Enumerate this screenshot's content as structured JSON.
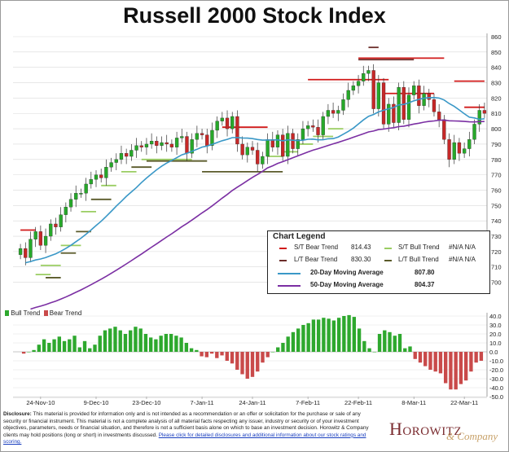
{
  "title": "Russell 2000 Stock Index",
  "legend": {
    "title": "Chart Legend",
    "items": [
      {
        "label": "S/T Bear Trend",
        "value": "814.43",
        "color": "#d11a1a"
      },
      {
        "label": "S/T Bull Trend",
        "value": "#N/A N/A",
        "color": "#9acd62"
      },
      {
        "label": "L/T Bear Trend",
        "value": "830.30",
        "color": "#6b2d2a"
      },
      {
        "label": "L/T Bull Trend",
        "value": "#N/A N/A",
        "color": "#5a5a2a"
      },
      {
        "label": "20-Day Moving Average",
        "value": "807.80",
        "color": "#3a98c7"
      },
      {
        "label": "50-Day Moving Average",
        "value": "804.37",
        "color": "#7b2fa3"
      }
    ]
  },
  "disclosure": {
    "label": "Disclosure:",
    "text": "This material is provided for information only and is not intended as a recommendation or an offer or solicitation for the purchase or sale of any security or financial instrument. This material is not a complete analysis of all material facts respecting any issuer, industry or security or of your investment objectives, parameters, needs or financial situation, and therefore is not a sufficient basis alone on which to base an investment decision. Horowitz & Company clients may hold positions (long or short) in investments discussed.",
    "link": "Please click for detailed disclosures and additional information about our stock ratings and scoring."
  },
  "logo": {
    "main": "Horowitz",
    "sub": "& Company"
  },
  "chart_data": [
    {
      "type": "candlestick",
      "title": "Russell 2000 Stock Index",
      "ylim": [
        695,
        860
      ],
      "yticks": [
        700,
        710,
        720,
        730,
        740,
        750,
        760,
        770,
        780,
        790,
        800,
        810,
        820,
        830,
        840,
        850,
        860
      ],
      "categories": [
        "24-Nov-10",
        "9-Dec-10",
        "23-Dec-10",
        "7-Jan-11",
        "24-Jan-11",
        "7-Feb-11",
        "22-Feb-11",
        "8-Mar-11",
        "22-Mar-11"
      ],
      "closes": [
        722,
        716,
        728,
        733,
        724,
        730,
        738,
        736,
        744,
        749,
        754,
        758,
        758,
        764,
        767,
        770,
        768,
        775,
        778,
        780,
        784,
        782,
        786,
        789,
        788,
        790,
        792,
        789,
        791,
        790,
        788,
        794,
        795,
        784,
        793,
        797,
        796,
        789,
        799,
        805,
        807,
        800,
        808,
        790,
        783,
        788,
        786,
        777,
        782,
        793,
        788,
        796,
        782,
        797,
        787,
        793,
        800,
        802,
        801,
        796,
        808,
        812,
        810,
        812,
        819,
        825,
        828,
        831,
        836,
        838,
        813,
        830,
        803,
        816,
        804,
        827,
        806,
        822,
        828,
        815,
        823,
        819,
        811,
        806,
        793,
        780,
        791,
        784,
        787,
        793,
        803,
        812,
        810
      ],
      "series": [
        {
          "name": "20-Day Moving Average",
          "color": "#3a98c7",
          "last": 807.8
        },
        {
          "name": "50-Day Moving Average",
          "color": "#7b2fa3",
          "last": 804.37
        }
      ],
      "st_bear_levels": [
        734,
        801,
        832,
        846,
        823,
        831,
        814
      ],
      "lt_bear_levels": [
        845,
        853,
        830
      ],
      "st_bull_levels": [
        705,
        711,
        724,
        746,
        763,
        772,
        780,
        782,
        785,
        790,
        795,
        800
      ],
      "lt_bull_levels": [
        703,
        719,
        733,
        754,
        775,
        779,
        772
      ]
    },
    {
      "type": "bar",
      "legend": [
        "Bull Trend",
        "Bear Trend"
      ],
      "colors": {
        "bull": "#2ea82e",
        "bear": "#c94a4a"
      },
      "ylim": [
        -50,
        40
      ],
      "yticks": [
        40,
        30,
        20,
        10,
        0,
        -10,
        -20,
        -30,
        -40,
        -50
      ],
      "values": [
        -2,
        0,
        2,
        8,
        14,
        10,
        14,
        17,
        12,
        14,
        18,
        5,
        12,
        4,
        8,
        18,
        24,
        26,
        28,
        24,
        20,
        24,
        28,
        26,
        20,
        16,
        14,
        18,
        20,
        20,
        18,
        16,
        10,
        4,
        2,
        -5,
        -6,
        -2,
        -7,
        -4,
        -10,
        -13,
        -20,
        -25,
        -30,
        -28,
        -22,
        -12,
        -6,
        0,
        5,
        10,
        17,
        22,
        26,
        30,
        32,
        36,
        36,
        38,
        37,
        35,
        38,
        40,
        41,
        39,
        26,
        12,
        4,
        0,
        20,
        24,
        22,
        18,
        20,
        4,
        6,
        -8,
        -12,
        -16,
        -20,
        -22,
        -24,
        -35,
        -42,
        -42,
        -36,
        -32,
        -22,
        -12,
        -10
      ]
    }
  ]
}
